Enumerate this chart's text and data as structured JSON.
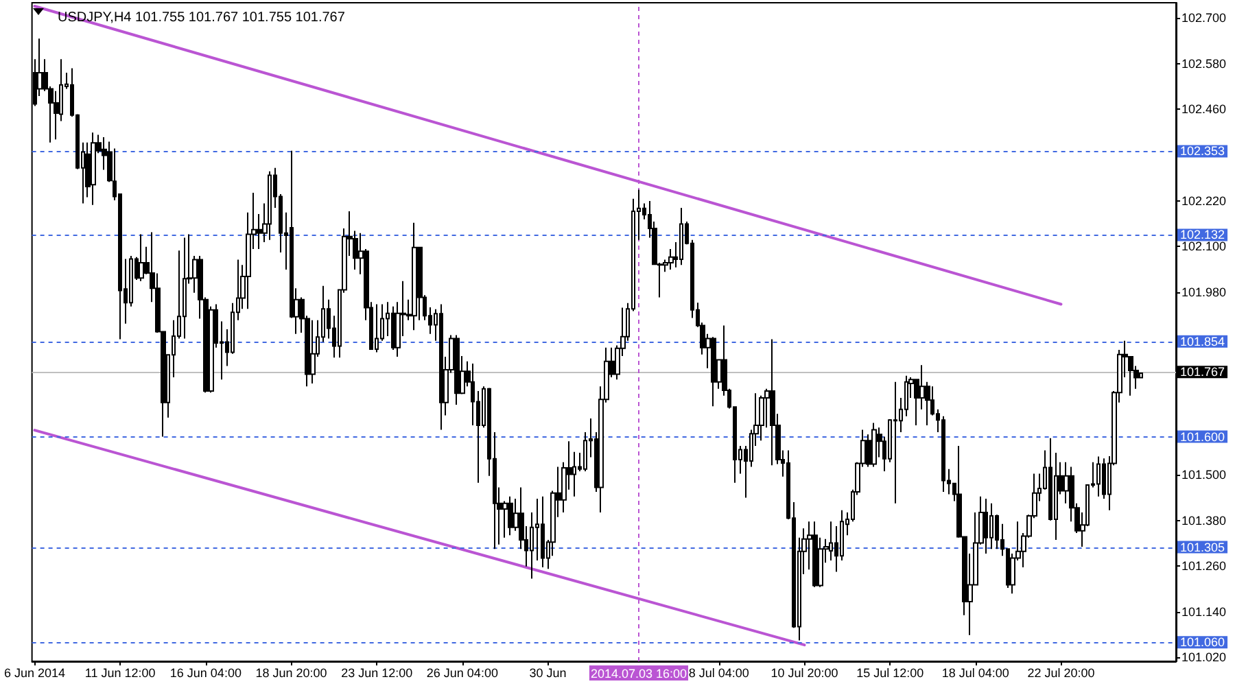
{
  "chart_data": {
    "type": "candlestick",
    "title": "USDJPY,H4 101.755 101.767 101.755 101.767",
    "categories": [
      "6 Jun 2014",
      null,
      null,
      null,
      null,
      null,
      null,
      null,
      null,
      null,
      null,
      null,
      null,
      null,
      null,
      null,
      "11 Jun 12:00",
      null,
      null,
      null,
      null,
      null,
      null,
      null,
      null,
      null,
      null,
      null,
      null,
      null,
      null,
      null,
      "16 Jun 04:00",
      null,
      null,
      null,
      null,
      null,
      null,
      null,
      null,
      null,
      null,
      null,
      null,
      null,
      null,
      null,
      "18 Jun 20:00",
      null,
      null,
      null,
      null,
      null,
      null,
      null,
      null,
      null,
      null,
      null,
      null,
      null,
      null,
      null,
      "23 Jun 12:00",
      null,
      null,
      null,
      null,
      null,
      null,
      null,
      null,
      null,
      null,
      null,
      null,
      null,
      null,
      null,
      "26 Jun 04:00",
      null,
      null,
      null,
      null,
      null,
      null,
      null,
      null,
      null,
      null,
      null,
      null,
      null,
      null,
      null,
      "30 Jun",
      null,
      null,
      null,
      null,
      null,
      null,
      null,
      null,
      null,
      null,
      null,
      null,
      null,
      null,
      null,
      null,
      "2014.07.03 16:00",
      null,
      null,
      null,
      null,
      null,
      null,
      null,
      null,
      null,
      null,
      null,
      null,
      null,
      null,
      "8 Jul 04:00",
      null,
      null,
      null,
      null,
      null,
      null,
      null,
      null,
      null,
      null,
      null,
      null,
      null,
      null,
      null,
      "10 Jul 20:00",
      null,
      null,
      null,
      null,
      null,
      null,
      null,
      null,
      null,
      null,
      null,
      null,
      null,
      null,
      null,
      "15 Jul 12:00",
      null,
      null,
      null,
      null,
      null,
      null,
      null,
      null,
      null,
      null,
      null,
      null,
      null,
      null,
      null,
      "18 Jul 04:00",
      null,
      null,
      null,
      null,
      null,
      null,
      null,
      null,
      null,
      null,
      null,
      null,
      null,
      null,
      null,
      "22 Jul 20:00",
      null,
      null,
      null,
      null,
      null,
      null,
      null,
      null,
      null,
      null,
      null,
      null,
      null,
      null,
      null
    ],
    "series": [
      {
        "color": "#000000",
        "ohlc": [
          [
            102.556,
            102.592,
            102.469,
            102.474
          ],
          [
            102.514,
            102.646,
            102.495,
            102.556
          ],
          [
            102.556,
            102.592,
            102.508,
            102.514
          ],
          [
            102.514,
            102.52,
            102.373,
            102.477
          ],
          [
            102.477,
            102.508,
            102.381,
            102.45
          ],
          [
            102.447,
            102.592,
            102.429,
            102.524
          ],
          [
            102.52,
            102.556,
            102.514,
            102.526
          ],
          [
            102.524,
            102.568,
            102.441,
            102.445
          ],
          [
            102.445,
            102.447,
            102.303,
            102.306
          ],
          [
            102.306,
            102.373,
            102.213,
            102.348
          ],
          [
            102.342,
            102.373,
            102.229,
            102.257
          ],
          [
            102.262,
            102.399,
            102.209,
            102.372
          ],
          [
            102.372,
            102.393,
            102.345,
            102.351
          ],
          [
            102.355,
            102.387,
            102.301,
            102.339
          ],
          [
            102.348,
            102.375,
            102.269,
            102.273
          ],
          [
            102.271,
            102.357,
            102.221,
            102.231
          ],
          [
            102.237,
            102.237,
            101.856,
            101.984
          ],
          [
            101.988,
            102.067,
            101.897,
            101.952
          ],
          [
            101.952,
            102.075,
            101.942,
            102.067
          ],
          [
            102.067,
            102.072,
            102.012,
            102.017
          ],
          [
            102.017,
            102.132,
            102.009,
            102.057
          ],
          [
            102.057,
            102.099,
            102.027,
            102.03
          ],
          [
            102.03,
            102.137,
            101.954,
            101.99
          ],
          [
            101.99,
            102.029,
            101.873,
            101.876
          ],
          [
            101.876,
            101.876,
            101.6,
            101.69
          ],
          [
            101.69,
            101.815,
            101.65,
            101.815
          ],
          [
            101.815,
            101.906,
            101.756,
            101.864
          ],
          [
            101.864,
            102.089,
            101.858,
            101.916
          ],
          [
            101.916,
            102.123,
            101.858,
            102.015
          ],
          [
            102.015,
            102.132,
            102.002,
            102.017
          ],
          [
            102.017,
            102.075,
            101.978,
            102.065
          ],
          [
            102.065,
            102.075,
            101.91,
            101.96
          ],
          [
            101.96,
            101.966,
            101.716,
            101.72
          ],
          [
            101.72,
            101.942,
            101.716,
            101.933
          ],
          [
            101.933,
            101.948,
            101.834,
            101.846
          ],
          [
            101.846,
            101.903,
            101.75,
            101.849
          ],
          [
            101.849,
            101.882,
            101.786,
            101.822
          ],
          [
            101.822,
            101.951,
            101.818,
            101.927
          ],
          [
            101.927,
            102.065,
            101.906,
            101.964
          ],
          [
            101.964,
            102.051,
            101.936,
            102.021
          ],
          [
            102.021,
            102.189,
            101.936,
            102.132
          ],
          [
            102.132,
            102.241,
            102.093,
            102.144
          ],
          [
            102.144,
            102.185,
            102.093,
            102.135
          ],
          [
            102.135,
            102.213,
            102.111,
            102.159
          ],
          [
            102.159,
            102.297,
            102.117,
            102.287
          ],
          [
            102.287,
            102.306,
            102.201,
            102.231
          ],
          [
            102.231,
            102.237,
            102.084,
            102.135
          ],
          [
            102.135,
            102.189,
            102.039,
            102.129
          ],
          [
            102.149,
            102.351,
            101.912,
            101.915
          ],
          [
            101.915,
            101.99,
            101.87,
            101.96
          ],
          [
            101.96,
            101.966,
            101.873,
            101.91
          ],
          [
            101.91,
            101.918,
            101.732,
            101.764
          ],
          [
            101.764,
            101.906,
            101.74,
            101.818
          ],
          [
            101.818,
            101.906,
            101.81,
            101.862
          ],
          [
            101.862,
            101.996,
            101.849,
            101.936
          ],
          [
            101.936,
            101.96,
            101.858,
            101.885
          ],
          [
            101.885,
            101.918,
            101.808,
            101.838
          ],
          [
            101.838,
            101.986,
            101.808,
            101.986
          ],
          [
            101.986,
            102.147,
            101.978,
            102.126
          ],
          [
            102.126,
            102.192,
            102.075,
            102.12
          ],
          [
            102.12,
            102.141,
            102.039,
            102.069
          ],
          [
            102.069,
            102.135,
            102.027,
            102.087
          ],
          [
            102.087,
            102.093,
            101.906,
            101.939
          ],
          [
            101.939,
            101.954,
            101.828,
            101.83
          ],
          [
            101.83,
            101.948,
            101.822,
            101.858
          ],
          [
            101.858,
            101.948,
            101.852,
            101.91
          ],
          [
            101.91,
            101.954,
            101.864,
            101.924
          ],
          [
            101.924,
            101.942,
            101.828,
            101.834
          ],
          [
            101.834,
            101.954,
            101.81,
            101.924
          ],
          [
            101.924,
            102.009,
            101.864,
            101.921
          ],
          [
            101.921,
            101.96,
            101.906,
            101.918
          ],
          [
            101.918,
            102.162,
            101.88,
            102.097
          ],
          [
            102.097,
            102.099,
            101.906,
            101.966
          ],
          [
            101.966,
            101.972,
            101.906,
            101.918
          ],
          [
            101.918,
            101.94,
            101.87,
            101.894
          ],
          [
            101.894,
            101.935,
            101.852,
            101.923
          ],
          [
            101.923,
            101.948,
            101.618,
            101.69
          ],
          [
            101.69,
            101.81,
            101.656,
            101.776
          ],
          [
            101.776,
            101.867,
            101.768,
            101.858
          ],
          [
            101.858,
            101.867,
            101.684,
            101.714
          ],
          [
            101.714,
            101.812,
            101.712,
            101.772
          ],
          [
            101.772,
            101.798,
            101.732,
            101.744
          ],
          [
            101.744,
            101.792,
            101.63,
            101.692
          ],
          [
            101.692,
            101.72,
            101.479,
            101.63
          ],
          [
            101.63,
            101.732,
            101.624,
            101.726
          ],
          [
            101.726,
            101.728,
            101.497,
            101.542
          ],
          [
            101.542,
            101.612,
            101.305,
            101.425
          ],
          [
            101.425,
            101.467,
            101.317,
            101.41
          ],
          [
            101.41,
            101.431,
            101.335,
            101.425
          ],
          [
            101.425,
            101.443,
            101.341,
            101.362
          ],
          [
            101.362,
            101.437,
            101.353,
            101.399
          ],
          [
            101.399,
            101.467,
            101.305,
            101.329
          ],
          [
            101.329,
            101.365,
            101.259,
            101.301
          ],
          [
            101.301,
            101.401,
            101.227,
            101.362
          ],
          [
            101.362,
            101.437,
            101.275,
            101.37
          ],
          [
            101.37,
            101.443,
            101.257,
            101.281
          ],
          [
            101.281,
            101.329,
            101.253,
            101.323
          ],
          [
            101.323,
            101.458,
            101.287,
            101.452
          ],
          [
            101.452,
            101.521,
            101.389,
            101.434
          ],
          [
            101.434,
            101.533,
            101.401,
            101.518
          ],
          [
            101.518,
            101.588,
            101.461,
            101.501
          ],
          [
            101.501,
            101.56,
            101.443,
            101.521
          ],
          [
            101.521,
            101.558,
            101.509,
            101.515
          ],
          [
            101.515,
            101.612,
            101.509,
            101.59
          ],
          [
            101.59,
            101.648,
            101.546,
            101.594
          ],
          [
            101.594,
            101.612,
            101.455,
            101.467
          ],
          [
            101.467,
            101.732,
            101.401,
            101.698
          ],
          [
            101.698,
            101.834,
            101.69,
            101.798
          ],
          [
            101.798,
            101.834,
            101.756,
            101.764
          ],
          [
            101.764,
            101.84,
            101.75,
            101.832
          ],
          [
            101.832,
            101.939,
            101.812,
            101.863
          ],
          [
            101.863,
            101.951,
            101.852,
            101.936
          ],
          [
            101.936,
            102.225,
            101.93,
            102.192
          ],
          [
            102.192,
            102.249,
            102.117,
            102.2
          ],
          [
            102.2,
            102.213,
            102.171,
            102.183
          ],
          [
            102.183,
            102.219,
            102.123,
            102.147
          ],
          [
            102.147,
            102.165,
            102.051,
            102.053
          ],
          [
            102.053,
            102.057,
            101.966,
            102.051
          ],
          [
            102.051,
            102.065,
            102.033,
            102.057
          ],
          [
            102.057,
            102.093,
            102.039,
            102.072
          ],
          [
            102.072,
            102.111,
            102.045,
            102.066
          ],
          [
            102.066,
            102.201,
            102.051,
            102.159
          ],
          [
            102.159,
            102.165,
            102.105,
            102.108
          ],
          [
            102.108,
            102.117,
            101.912,
            101.933
          ],
          [
            101.933,
            101.952,
            101.888,
            101.892
          ],
          [
            101.892,
            101.9,
            101.816,
            101.834
          ],
          [
            101.834,
            101.87,
            101.78,
            101.858
          ],
          [
            101.858,
            101.862,
            101.68,
            101.744
          ],
          [
            101.744,
            101.804,
            101.726,
            101.802
          ],
          [
            101.802,
            101.892,
            101.708,
            101.722
          ],
          [
            101.722,
            101.726,
            101.674,
            101.678
          ],
          [
            101.678,
            101.68,
            101.479,
            101.54
          ],
          [
            101.54,
            101.576,
            101.503,
            101.566
          ],
          [
            101.566,
            101.576,
            101.44,
            101.536
          ],
          [
            101.536,
            101.618,
            101.521,
            101.608
          ],
          [
            101.608,
            101.714,
            101.576,
            101.63
          ],
          [
            101.63,
            101.708,
            101.59,
            101.702
          ],
          [
            101.702,
            101.726,
            101.624,
            101.72
          ],
          [
            101.72,
            101.856,
            101.525,
            101.63
          ],
          [
            101.63,
            101.66,
            101.528,
            101.54
          ],
          [
            101.54,
            101.564,
            101.495,
            101.531
          ],
          [
            101.531,
            101.564,
            101.383,
            101.386
          ],
          [
            101.386,
            101.428,
            101.098,
            101.101
          ],
          [
            101.101,
            101.335,
            101.065,
            101.299
          ],
          [
            101.299,
            101.359,
            101.239,
            101.331
          ],
          [
            101.331,
            101.377,
            101.251,
            101.341
          ],
          [
            101.341,
            101.377,
            101.205,
            101.209
          ],
          [
            101.209,
            101.335,
            101.205,
            101.305
          ],
          [
            101.305,
            101.331,
            101.269,
            101.311
          ],
          [
            101.3,
            101.377,
            101.275,
            101.321
          ],
          [
            101.321,
            101.365,
            101.245,
            101.287
          ],
          [
            101.287,
            101.407,
            101.275,
            101.377
          ],
          [
            101.37,
            101.401,
            101.341,
            101.383
          ],
          [
            101.383,
            101.461,
            101.377,
            101.455
          ],
          [
            101.455,
            101.533,
            101.447,
            101.53
          ],
          [
            101.53,
            101.618,
            101.521,
            101.59
          ],
          [
            101.59,
            101.606,
            101.521,
            101.528
          ],
          [
            101.528,
            101.636,
            101.521,
            101.618
          ],
          [
            101.606,
            101.624,
            101.546,
            101.588
          ],
          [
            101.588,
            101.6,
            101.509,
            101.542
          ],
          [
            101.542,
            101.646,
            101.533,
            101.644
          ],
          [
            101.644,
            101.744,
            101.425,
            101.642
          ],
          [
            101.642,
            101.702,
            101.612,
            101.672
          ],
          [
            101.672,
            101.76,
            101.654,
            101.744
          ],
          [
            101.74,
            101.756,
            101.702,
            101.75
          ],
          [
            101.75,
            101.752,
            101.63,
            101.702
          ],
          [
            101.702,
            101.788,
            101.672,
            101.732
          ],
          [
            101.732,
            101.744,
            101.63,
            101.696
          ],
          [
            101.696,
            101.732,
            101.656,
            101.66
          ],
          [
            101.66,
            101.672,
            101.612,
            101.644
          ],
          [
            101.644,
            101.654,
            101.455,
            101.485
          ],
          [
            101.485,
            101.515,
            101.449,
            101.477
          ],
          [
            101.477,
            101.479,
            101.431,
            101.449
          ],
          [
            101.449,
            101.576,
            101.335,
            101.337
          ],
          [
            101.337,
            101.339,
            101.131,
            101.167
          ],
          [
            101.167,
            101.293,
            101.079,
            101.211
          ],
          [
            101.211,
            101.401,
            101.209,
            101.321
          ],
          [
            101.321,
            101.443,
            101.317,
            101.401
          ],
          [
            101.401,
            101.437,
            101.293,
            101.335
          ],
          [
            101.335,
            101.425,
            101.305,
            101.392
          ],
          [
            101.392,
            101.395,
            101.305,
            101.329
          ],
          [
            101.329,
            101.371,
            101.287,
            101.305
          ],
          [
            101.305,
            101.307,
            101.203,
            101.211
          ],
          [
            101.211,
            101.293,
            101.188,
            101.281
          ],
          [
            101.281,
            101.377,
            101.275,
            101.299
          ],
          [
            101.299,
            101.347,
            101.257,
            101.339
          ],
          [
            101.339,
            101.395,
            101.335,
            101.392
          ],
          [
            101.392,
            101.503,
            101.386,
            101.452
          ],
          [
            101.452,
            101.503,
            101.431,
            101.464
          ],
          [
            101.464,
            101.564,
            101.461,
            101.519
          ],
          [
            101.519,
            101.596,
            101.38,
            101.383
          ],
          [
            101.383,
            101.558,
            101.329,
            101.497
          ],
          [
            101.497,
            101.533,
            101.449,
            101.458
          ],
          [
            101.458,
            101.533,
            101.425,
            101.497
          ],
          [
            101.497,
            101.521,
            101.377,
            101.413
          ],
          [
            101.413,
            101.425,
            101.347,
            101.353
          ],
          [
            101.353,
            101.401,
            101.311,
            101.368
          ],
          [
            101.368,
            101.475,
            101.365,
            101.473
          ],
          [
            101.473,
            101.533,
            101.467,
            101.476
          ],
          [
            101.476,
            101.548,
            101.443,
            101.528
          ],
          [
            101.528,
            101.543,
            101.437,
            101.449
          ],
          [
            101.449,
            101.549,
            101.407,
            101.53
          ],
          [
            101.53,
            101.72,
            101.525,
            101.716
          ],
          [
            101.716,
            101.828,
            101.69,
            101.816
          ],
          [
            101.816,
            101.852,
            101.756,
            101.81
          ],
          [
            101.81,
            101.812,
            101.708,
            101.774
          ],
          [
            101.774,
            101.786,
            101.726,
            101.755
          ],
          [
            101.755,
            101.767,
            101.755,
            101.767
          ]
        ]
      },
      {
        "type": "line",
        "x": [
          "6 Jun 2014",
          "22 Jul 20:00"
        ],
        "values": [
          102.731,
          101.948
        ],
        "color": "#ba55d3"
      },
      {
        "type": "line",
        "x": [
          "6 Jun 2014",
          "10 Jul 20:00"
        ],
        "values": [
          101.617,
          101.053
        ],
        "color": "#ba55d3"
      }
    ],
    "ylim": [
      101.01,
      102.74
    ],
    "yticks": [
      {
        "value": 102.7,
        "label": "102.700"
      },
      {
        "value": 102.58,
        "label": "102.580"
      },
      {
        "value": 102.46,
        "label": "102.460"
      },
      {
        "value": 102.22,
        "label": "102.220"
      },
      {
        "value": 102.1,
        "label": "102.100"
      },
      {
        "value": 101.98,
        "label": "101.980"
      },
      {
        "value": 101.5,
        "label": "101.500"
      },
      {
        "value": 101.38,
        "label": "101.380"
      },
      {
        "value": 101.26,
        "label": "101.260"
      },
      {
        "value": 101.14,
        "label": "101.140"
      },
      {
        "value": 101.02,
        "label": "101.020"
      }
    ],
    "ref_lines": [
      {
        "axis": "y",
        "value": 102.353,
        "label": "102.353",
        "color": "#4169e1",
        "line_style": "dashed"
      },
      {
        "axis": "y",
        "value": 102.132,
        "label": "102.132",
        "color": "#4169e1",
        "line_style": "dashed"
      },
      {
        "axis": "y",
        "value": 101.854,
        "label": "101.854",
        "color": "#4169e1",
        "line_style": "dashed"
      },
      {
        "axis": "y",
        "value": 101.767,
        "label": "101.767",
        "color": "#c0c0c0",
        "line_style": "solid"
      },
      {
        "axis": "y",
        "value": 101.6,
        "label": "101.600",
        "color": "#4169e1",
        "line_style": "dashed"
      },
      {
        "axis": "y",
        "value": 101.305,
        "label": "101.305",
        "color": "#4169e1",
        "line_style": "dashed"
      },
      {
        "axis": "y",
        "value": 101.06,
        "label": "101.060",
        "color": "#4169e1",
        "line_style": "dashed"
      },
      {
        "axis": "x",
        "value": "2014.07.03 16:00",
        "color": "#ba55d3",
        "line_style": "dashed"
      }
    ]
  }
}
